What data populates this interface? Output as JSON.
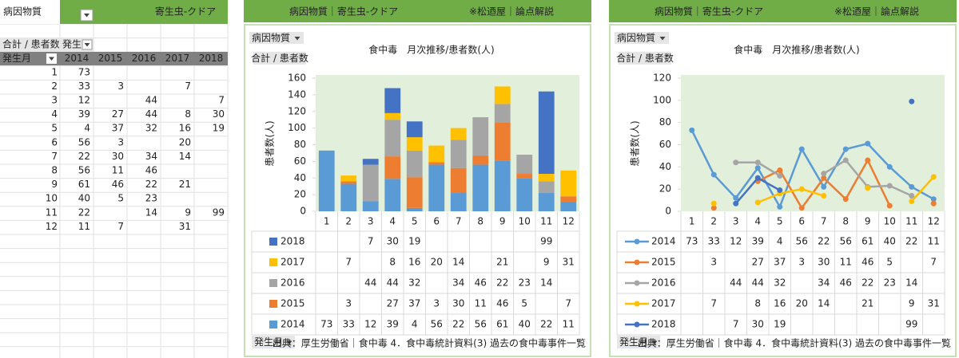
{
  "table": {
    "filter_label": "病因物質",
    "filter_value": "寄生虫-クドア",
    "value_label": "合計 / 患者数",
    "column_label": "発生",
    "row_label": "発生月",
    "columns": [
      "2014",
      "2015",
      "2016",
      "2017",
      "2018"
    ],
    "rows": [
      [
        1,
        73,
        null,
        null,
        null,
        null
      ],
      [
        2,
        33,
        3,
        null,
        7,
        null
      ],
      [
        3,
        12,
        null,
        44,
        null,
        7
      ],
      [
        4,
        39,
        27,
        44,
        8,
        30
      ],
      [
        5,
        4,
        37,
        32,
        16,
        19
      ],
      [
        6,
        56,
        3,
        null,
        20,
        null
      ],
      [
        7,
        22,
        30,
        34,
        14,
        null
      ],
      [
        8,
        56,
        11,
        46,
        null,
        null
      ],
      [
        9,
        61,
        46,
        22,
        21,
        null
      ],
      [
        10,
        40,
        5,
        23,
        null,
        null
      ],
      [
        11,
        22,
        null,
        14,
        9,
        99
      ],
      [
        12,
        11,
        7,
        null,
        31,
        null
      ]
    ]
  },
  "chart_data": [
    {
      "type": "bar",
      "header": "病因物質｜寄生虫-クドア",
      "header_note": "※松迺屋｜論点解説",
      "title": "食中毒　月次推移/患者数(人)",
      "ylabel": "患者数(人)",
      "filter_button": "病因物質",
      "value_button": "合計 / 患者数",
      "category_button": "発生月",
      "source": "出典：厚生労働省｜食中毒 4．食中毒統計資料(3) 過去の食中毒事件一覧",
      "plot_background": "#e2efda",
      "table_order": "reversed",
      "categories": [
        "1",
        "2",
        "3",
        "4",
        "5",
        "6",
        "7",
        "8",
        "9",
        "10",
        "11",
        "12"
      ],
      "ylim": [
        0,
        160
      ],
      "yticks": [
        0,
        20,
        40,
        60,
        80,
        100,
        120,
        140,
        160
      ],
      "series": [
        {
          "name": "2014",
          "color": "#5b9bd5",
          "values": [
            73,
            33,
            12,
            39,
            4,
            56,
            22,
            56,
            61,
            40,
            22,
            11
          ]
        },
        {
          "name": "2015",
          "color": "#ed7d31",
          "values": [
            null,
            3,
            null,
            27,
            37,
            3,
            30,
            11,
            46,
            5,
            null,
            7
          ]
        },
        {
          "name": "2016",
          "color": "#a5a5a5",
          "values": [
            null,
            null,
            44,
            44,
            32,
            null,
            34,
            46,
            22,
            23,
            14,
            null
          ]
        },
        {
          "name": "2017",
          "color": "#ffc000",
          "values": [
            null,
            7,
            null,
            8,
            16,
            20,
            14,
            null,
            21,
            null,
            9,
            31
          ]
        },
        {
          "name": "2018",
          "color": "#4472c4",
          "values": [
            null,
            null,
            7,
            30,
            19,
            null,
            null,
            null,
            null,
            null,
            99,
            null
          ]
        }
      ]
    },
    {
      "type": "line",
      "header": "病因物質｜寄生虫-クドア",
      "header_note": "※松迺屋｜論点解説",
      "title": "食中毒　月次推移/患者数(人)",
      "ylabel": "患者数(人)",
      "filter_button": "病因物質",
      "value_button": "合計 / 患者数",
      "category_button": "発生月",
      "source": "出典：厚生労働省｜食中毒 4．食中毒統計資料(3) 過去の食中毒事件一覧",
      "plot_background": "#e2efda",
      "table_order": "normal",
      "categories": [
        "1",
        "2",
        "3",
        "4",
        "5",
        "6",
        "7",
        "8",
        "9",
        "10",
        "11",
        "12"
      ],
      "ylim": [
        0,
        120
      ],
      "yticks": [
        0,
        20,
        40,
        60,
        80,
        100,
        120
      ],
      "series": [
        {
          "name": "2014",
          "color": "#5b9bd5",
          "values": [
            73,
            33,
            12,
            39,
            4,
            56,
            22,
            56,
            61,
            40,
            22,
            11
          ]
        },
        {
          "name": "2015",
          "color": "#ed7d31",
          "values": [
            null,
            3,
            null,
            27,
            37,
            3,
            30,
            11,
            46,
            5,
            null,
            7
          ]
        },
        {
          "name": "2016",
          "color": "#a5a5a5",
          "values": [
            null,
            null,
            44,
            44,
            32,
            null,
            34,
            46,
            22,
            23,
            14,
            null
          ]
        },
        {
          "name": "2017",
          "color": "#ffc000",
          "values": [
            null,
            7,
            null,
            8,
            16,
            20,
            14,
            null,
            21,
            null,
            9,
            31
          ]
        },
        {
          "name": "2018",
          "color": "#4472c4",
          "values": [
            null,
            null,
            7,
            30,
            19,
            null,
            null,
            null,
            null,
            null,
            99,
            null
          ]
        }
      ]
    }
  ]
}
